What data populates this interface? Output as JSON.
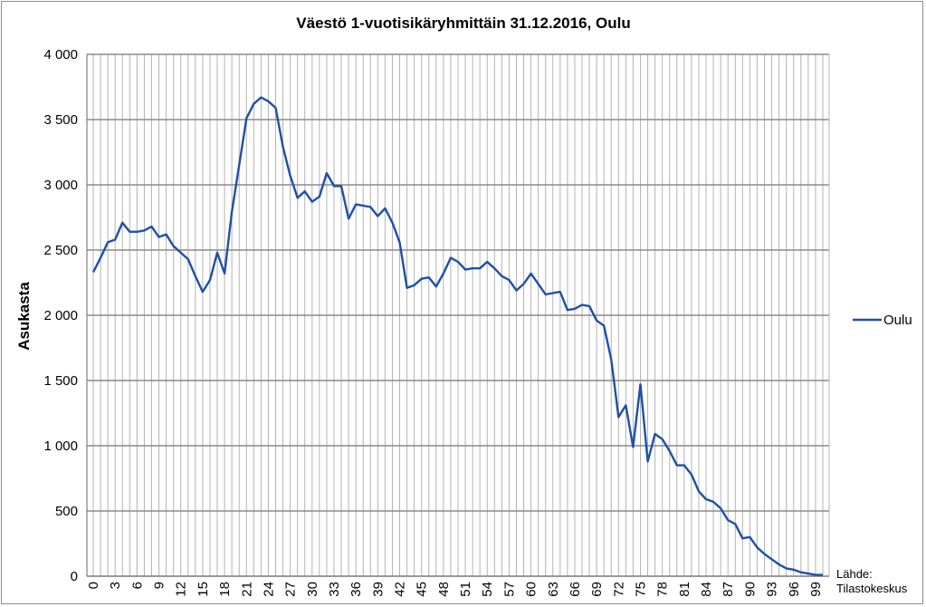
{
  "chart_data": {
    "type": "line",
    "title": "Väestö 1-vuotisikäryhmittäin 31.12.2016, Oulu",
    "xlabel": "",
    "ylabel": "Asukasta",
    "ylim": [
      0,
      4000
    ],
    "yticks": [
      0,
      500,
      1000,
      1500,
      2000,
      2500,
      3000,
      3500,
      4000
    ],
    "ytick_labels": [
      "0",
      "500",
      "1 000",
      "1 500",
      "2 000",
      "2 500",
      "3 000",
      "3 500",
      "4 000"
    ],
    "xtick_labels": [
      "0",
      "3",
      "6",
      "9",
      "12",
      "15",
      "18",
      "21",
      "24",
      "27",
      "30",
      "33",
      "36",
      "39",
      "42",
      "45",
      "48",
      "51",
      "54",
      "57",
      "60",
      "63",
      "66",
      "69",
      "72",
      "75",
      "78",
      "81",
      "84",
      "87",
      "90",
      "93",
      "96",
      "99"
    ],
    "grid": true,
    "legend_position": "right",
    "source_note": [
      "Lähde:",
      "Tilastokeskus"
    ],
    "series": [
      {
        "name": "Oulu",
        "color": "#1f4fa8",
        "x": [
          0,
          1,
          2,
          3,
          4,
          5,
          6,
          7,
          8,
          9,
          10,
          11,
          12,
          13,
          14,
          15,
          16,
          17,
          18,
          19,
          20,
          21,
          22,
          23,
          24,
          25,
          26,
          27,
          28,
          29,
          30,
          31,
          32,
          33,
          34,
          35,
          36,
          37,
          38,
          39,
          40,
          41,
          42,
          43,
          44,
          45,
          46,
          47,
          48,
          49,
          50,
          51,
          52,
          53,
          54,
          55,
          56,
          57,
          58,
          59,
          60,
          61,
          62,
          63,
          64,
          65,
          66,
          67,
          68,
          69,
          70,
          71,
          72,
          73,
          74,
          75,
          76,
          77,
          78,
          79,
          80,
          81,
          82,
          83,
          84,
          85,
          86,
          87,
          88,
          89,
          90,
          91,
          92,
          93,
          94,
          95,
          96,
          97,
          98,
          99,
          100
        ],
        "values": [
          2330,
          2440,
          2560,
          2580,
          2710,
          2640,
          2640,
          2650,
          2680,
          2600,
          2620,
          2530,
          2480,
          2430,
          2300,
          2180,
          2270,
          2480,
          2320,
          2790,
          3150,
          3510,
          3620,
          3670,
          3640,
          3590,
          3290,
          3070,
          2900,
          2950,
          2870,
          2910,
          3090,
          2990,
          2990,
          2740,
          2850,
          2840,
          2830,
          2760,
          2820,
          2710,
          2560,
          2210,
          2230,
          2280,
          2290,
          2220,
          2320,
          2440,
          2410,
          2350,
          2360,
          2360,
          2410,
          2360,
          2300,
          2270,
          2190,
          2240,
          2320,
          2240,
          2160,
          2170,
          2180,
          2040,
          2050,
          2080,
          2070,
          1960,
          1920,
          1660,
          1220,
          1310,
          990,
          1470,
          880,
          1090,
          1050,
          960,
          850,
          850,
          780,
          650,
          590,
          570,
          520,
          430,
          400,
          290,
          300,
          220,
          170,
          130,
          90,
          60,
          50,
          30,
          20,
          10,
          10
        ]
      }
    ]
  }
}
